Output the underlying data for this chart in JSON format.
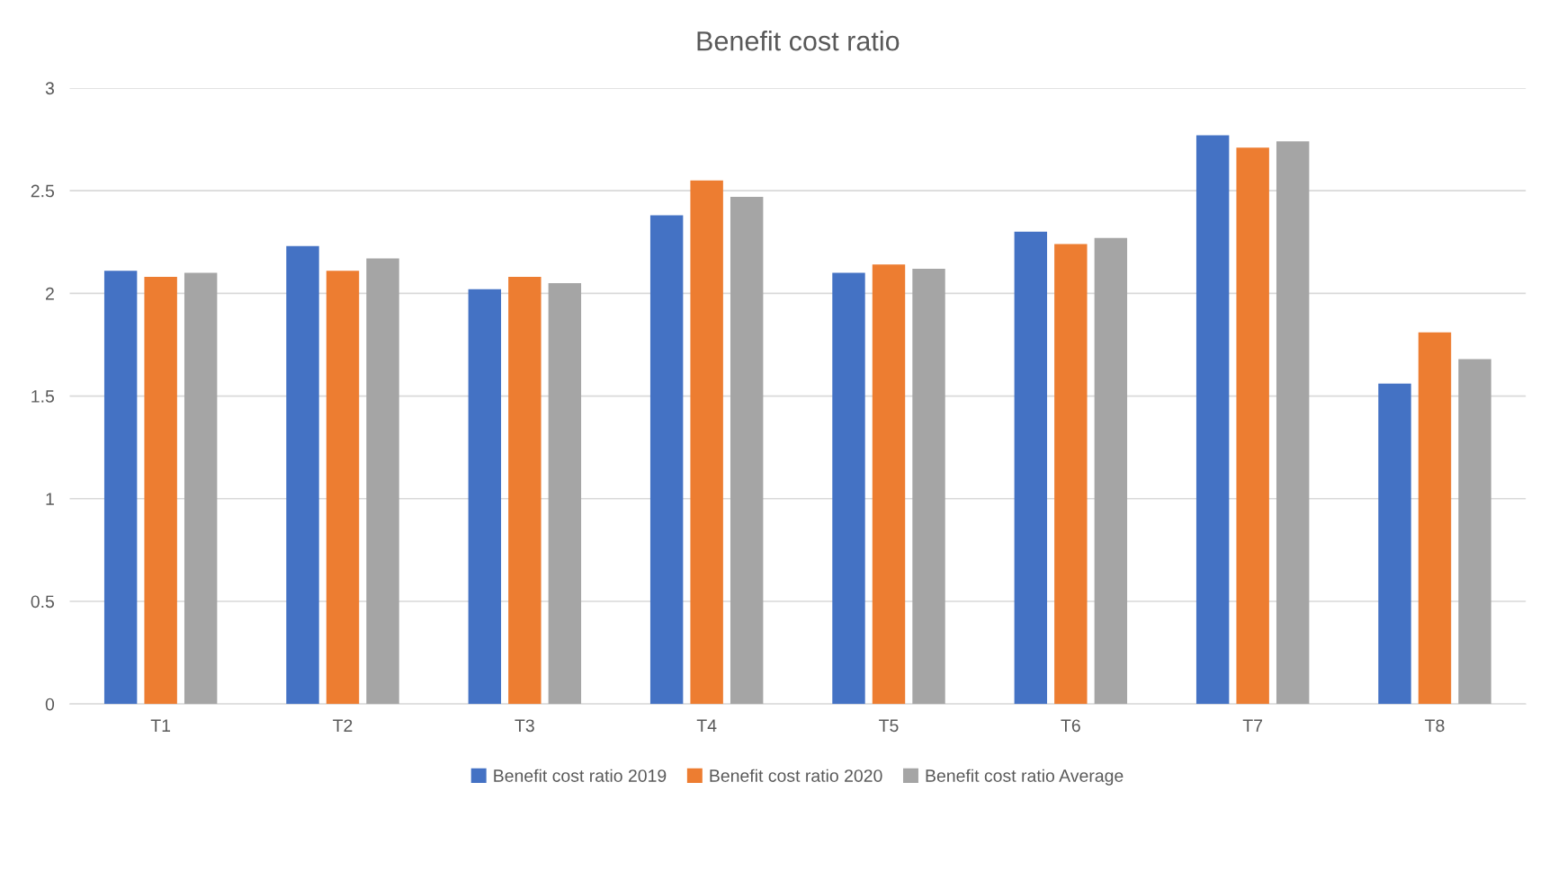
{
  "chart_data": {
    "type": "bar",
    "title": "Benefit cost ratio",
    "categories": [
      "T1",
      "T2",
      "T3",
      "T4",
      "T5",
      "T6",
      "T7",
      "T8"
    ],
    "series": [
      {
        "name": "Benefit cost ratio 2019",
        "color": "#4472c4",
        "values": [
          2.11,
          2.23,
          2.02,
          2.38,
          2.1,
          2.3,
          2.77,
          1.56
        ]
      },
      {
        "name": "Benefit cost ratio 2020",
        "color": "#ed7d31",
        "values": [
          2.08,
          2.11,
          2.08,
          2.55,
          2.14,
          2.24,
          2.71,
          1.81
        ]
      },
      {
        "name": "Benefit cost ratio Average",
        "color": "#a5a5a5",
        "values": [
          2.1,
          2.17,
          2.05,
          2.47,
          2.12,
          2.27,
          2.74,
          1.68
        ]
      }
    ],
    "ylim": [
      0,
      3
    ],
    "yticks": [
      0,
      0.5,
      1,
      1.5,
      2,
      2.5,
      3
    ],
    "grid": "y",
    "legend": "bottom"
  }
}
